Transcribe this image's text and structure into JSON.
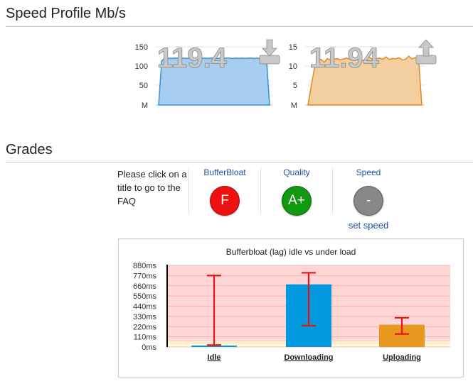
{
  "speed_profile": {
    "title": "Speed Profile Mb/s",
    "download": {
      "value": "119.4",
      "icon": "download-arrow-icon",
      "color": "#5aa7e8",
      "yticks": [
        "150",
        "100",
        "50",
        "M"
      ],
      "ymax": 150,
      "series": [
        0,
        114,
        120,
        121,
        120,
        121,
        121,
        120,
        121,
        120,
        121,
        121,
        120,
        121,
        120,
        121,
        120,
        121,
        121,
        120,
        121,
        120,
        121,
        121,
        120,
        121,
        120,
        121,
        120,
        121,
        121,
        120,
        121,
        120,
        121,
        120,
        0
      ]
    },
    "upload": {
      "value": "11.94",
      "icon": "upload-arrow-icon",
      "color": "#e0a050",
      "yticks": [
        "15",
        "10",
        "5",
        "M"
      ],
      "ymax": 15,
      "series": [
        0,
        5,
        9.5,
        11,
        11.8,
        11,
        12,
        11.5,
        11.8,
        12,
        11.6,
        11.9,
        12.1,
        11.7,
        11.9,
        12.2,
        11.8,
        11.5,
        12,
        12.3,
        11.6,
        11.9,
        12.1,
        11.8,
        12.4,
        11.7,
        12,
        11.9,
        12.2,
        11.6,
        11.8,
        12.6,
        11.9,
        12.2,
        12.1,
        0
      ]
    }
  },
  "grades": {
    "title": "Grades",
    "help_text": "Please click on a title to go to the FAQ",
    "items": [
      {
        "label": "BufferBloat",
        "grade": "F",
        "color": "#ee1111"
      },
      {
        "label": "Quality",
        "grade": "A+",
        "color": "#119911"
      },
      {
        "label": "Speed",
        "grade": "-",
        "color": "#888888",
        "sub": "set speed"
      }
    ]
  },
  "chart_data": {
    "type": "bar",
    "title": "Bufferbloat (lag) idle vs under load",
    "categories": [
      "Idle",
      "Downloading",
      "Uploading"
    ],
    "values": [
      15,
      675,
      240
    ],
    "error_bars": [
      [
        20,
        770
      ],
      [
        230,
        800
      ],
      [
        140,
        315
      ]
    ],
    "ylim": [
      0,
      880
    ],
    "yticks": [
      "880ms",
      "770ms",
      "660ms",
      "550ms",
      "440ms",
      "330ms",
      "220ms",
      "110ms",
      "0ms"
    ],
    "ytick_values": [
      880,
      770,
      660,
      550,
      440,
      330,
      220,
      110,
      0
    ],
    "bar_colors": [
      "#0099dd",
      "#0099dd",
      "#e8981e"
    ],
    "error_color": "#ee1111",
    "zones": [
      {
        "from": 0,
        "to": 30,
        "color": "#fffbd8"
      },
      {
        "from": 30,
        "to": 60,
        "color": "#fff0cc"
      },
      {
        "from": 60,
        "to": 880,
        "color": "#ffd6d6"
      }
    ],
    "grid": true
  }
}
